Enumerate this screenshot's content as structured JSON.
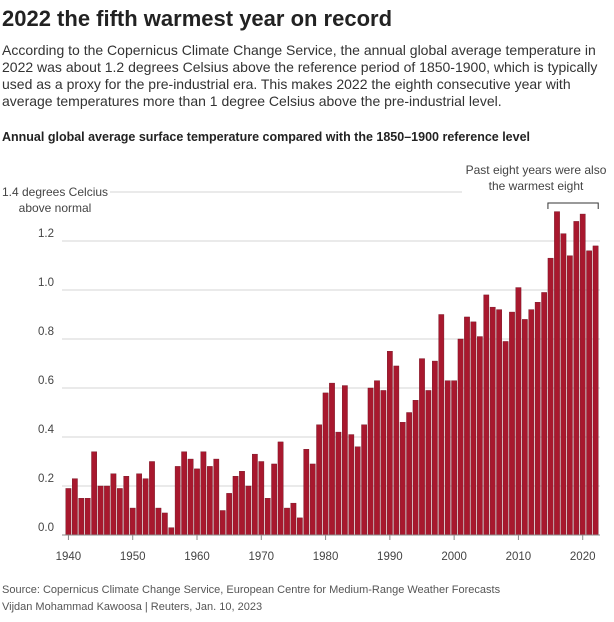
{
  "title": "2022 the fifth warmest year on record",
  "subtitle": "According to the Copernicus Climate Change Service, the annual global average temperature in 2022 was about 1.2 degrees Celsius above the reference period of 1850-1900, which is typically used as a proxy for the pre-industrial era. This makes 2022 the eighth consecutive year with average temperatures more than 1 degree Celsius above the pre-industrial level.",
  "chart_data": {
    "type": "bar",
    "title": "Annual global average surface temperature compared with the 1850–1900 reference level",
    "annotation": "Past eight years were also the warmest eight",
    "color": "#a8182e",
    "x": [
      1940,
      1941,
      1942,
      1943,
      1944,
      1945,
      1946,
      1947,
      1948,
      1949,
      1950,
      1951,
      1952,
      1953,
      1954,
      1955,
      1956,
      1957,
      1958,
      1959,
      1960,
      1961,
      1962,
      1963,
      1964,
      1965,
      1966,
      1967,
      1968,
      1969,
      1970,
      1971,
      1972,
      1973,
      1974,
      1975,
      1976,
      1977,
      1978,
      1979,
      1980,
      1981,
      1982,
      1983,
      1984,
      1985,
      1986,
      1987,
      1988,
      1989,
      1990,
      1991,
      1992,
      1993,
      1994,
      1995,
      1996,
      1997,
      1998,
      1999,
      2000,
      2001,
      2002,
      2003,
      2004,
      2005,
      2006,
      2007,
      2008,
      2009,
      2010,
      2011,
      2012,
      2013,
      2014,
      2015,
      2016,
      2017,
      2018,
      2019,
      2020,
      2021,
      2022
    ],
    "values": [
      0.19,
      0.23,
      0.15,
      0.15,
      0.34,
      0.2,
      0.2,
      0.25,
      0.19,
      0.24,
      0.11,
      0.25,
      0.23,
      0.3,
      0.11,
      0.09,
      0.03,
      0.28,
      0.34,
      0.31,
      0.27,
      0.34,
      0.28,
      0.31,
      0.1,
      0.17,
      0.24,
      0.26,
      0.2,
      0.33,
      0.3,
      0.15,
      0.29,
      0.38,
      0.11,
      0.13,
      0.07,
      0.35,
      0.29,
      0.45,
      0.58,
      0.62,
      0.42,
      0.61,
      0.41,
      0.36,
      0.45,
      0.6,
      0.63,
      0.59,
      0.75,
      0.69,
      0.46,
      0.5,
      0.55,
      0.72,
      0.59,
      0.71,
      0.9,
      0.63,
      0.63,
      0.8,
      0.89,
      0.87,
      0.81,
      0.98,
      0.93,
      0.92,
      0.79,
      0.91,
      1.01,
      0.88,
      0.92,
      0.95,
      0.99,
      1.13,
      1.32,
      1.23,
      1.14,
      1.28,
      1.31,
      1.16,
      1.18
    ],
    "xlim": [
      1939,
      2023
    ],
    "xticks": [
      1940,
      1950,
      1960,
      1970,
      1980,
      1990,
      2000,
      2010,
      2020
    ],
    "ylim": [
      0,
      1.4
    ],
    "yticks": [
      {
        "value": 0,
        "label": "0.0"
      },
      0.2,
      0.4,
      0.6,
      0.8,
      {
        "value": 1,
        "label": "1.0"
      },
      1.2,
      {
        "value": 1.4,
        "label": "1.4 degrees Celcius above normal"
      }
    ],
    "grid": true
  },
  "source": "Source: Copernicus Climate Change Service, European Centre for Medium-Range Weather Forecasts",
  "byline": "Vijdan Mohammad Kawoosa  |  Reuters, Jan. 10, 2023"
}
